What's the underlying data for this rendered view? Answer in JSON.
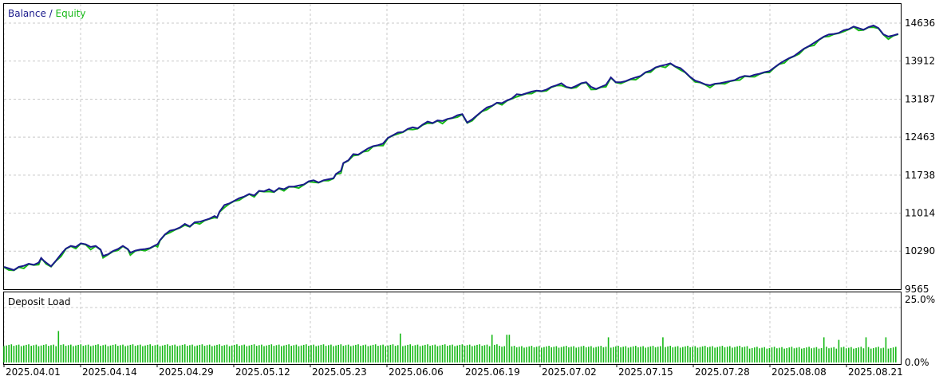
{
  "chart_data": [
    {
      "type": "line",
      "legend": {
        "placement": "top-left",
        "separator": " / "
      },
      "series": [
        {
          "name": "Balance",
          "color": "#1a1a8c"
        },
        {
          "name": "Equity",
          "color": "#17b917"
        }
      ],
      "x_ticks": [
        "2025.04.01",
        "2025.04.14",
        "2025.04.29",
        "2025.05.12",
        "2025.05.23",
        "2025.06.06",
        "2025.06.19",
        "2025.07.02",
        "2025.07.15",
        "2025.07.28",
        "2025.08.08",
        "2025.08.21"
      ],
      "y_ticks": [
        "14636",
        "13912",
        "13187",
        "12463",
        "11738",
        "11014",
        "10290",
        "9565"
      ],
      "ylim": [
        9565,
        14636
      ],
      "grid": true,
      "balance_points": [
        [
          0,
          9990
        ],
        [
          2,
          9960
        ],
        [
          4,
          9930
        ],
        [
          6,
          9990
        ],
        [
          8,
          10010
        ],
        [
          10,
          10050
        ],
        [
          12,
          10030
        ],
        [
          14,
          10070
        ],
        [
          15,
          10160
        ],
        [
          16,
          10110
        ],
        [
          17,
          10070
        ],
        [
          19,
          10000
        ],
        [
          21,
          10110
        ],
        [
          23,
          10230
        ],
        [
          25,
          10340
        ],
        [
          27,
          10390
        ],
        [
          29,
          10370
        ],
        [
          31,
          10440
        ],
        [
          33,
          10420
        ],
        [
          35,
          10370
        ],
        [
          37,
          10390
        ],
        [
          39,
          10320
        ],
        [
          40,
          10200
        ],
        [
          42,
          10230
        ],
        [
          44,
          10290
        ],
        [
          46,
          10330
        ],
        [
          48,
          10390
        ],
        [
          50,
          10330
        ],
        [
          51,
          10260
        ],
        [
          53,
          10300
        ],
        [
          55,
          10320
        ],
        [
          57,
          10330
        ],
        [
          59,
          10350
        ],
        [
          61,
          10400
        ],
        [
          62,
          10420
        ],
        [
          63,
          10500
        ],
        [
          65,
          10610
        ],
        [
          67,
          10680
        ],
        [
          69,
          10700
        ],
        [
          71,
          10740
        ],
        [
          73,
          10810
        ],
        [
          75,
          10760
        ],
        [
          77,
          10840
        ],
        [
          79,
          10850
        ],
        [
          81,
          10880
        ],
        [
          83,
          10910
        ],
        [
          85,
          10960
        ],
        [
          86,
          10930
        ],
        [
          87,
          11040
        ],
        [
          89,
          11170
        ],
        [
          91,
          11200
        ],
        [
          93,
          11250
        ],
        [
          95,
          11300
        ],
        [
          97,
          11330
        ],
        [
          99,
          11380
        ],
        [
          101,
          11350
        ],
        [
          103,
          11440
        ],
        [
          105,
          11430
        ],
        [
          107,
          11470
        ],
        [
          109,
          11420
        ],
        [
          111,
          11490
        ],
        [
          113,
          11470
        ],
        [
          115,
          11520
        ],
        [
          117,
          11520
        ],
        [
          119,
          11540
        ],
        [
          121,
          11560
        ],
        [
          123,
          11620
        ],
        [
          125,
          11640
        ],
        [
          127,
          11600
        ],
        [
          129,
          11640
        ],
        [
          131,
          11660
        ],
        [
          133,
          11680
        ],
        [
          134,
          11760
        ],
        [
          136,
          11820
        ],
        [
          137,
          11970
        ],
        [
          139,
          12020
        ],
        [
          141,
          12140
        ],
        [
          143,
          12130
        ],
        [
          145,
          12190
        ],
        [
          147,
          12250
        ],
        [
          149,
          12290
        ],
        [
          151,
          12310
        ],
        [
          153,
          12340
        ],
        [
          155,
          12450
        ],
        [
          157,
          12500
        ],
        [
          159,
          12550
        ],
        [
          161,
          12560
        ],
        [
          163,
          12620
        ],
        [
          165,
          12650
        ],
        [
          167,
          12630
        ],
        [
          169,
          12700
        ],
        [
          171,
          12760
        ],
        [
          173,
          12730
        ],
        [
          175,
          12780
        ],
        [
          177,
          12770
        ],
        [
          179,
          12810
        ],
        [
          181,
          12830
        ],
        [
          183,
          12880
        ],
        [
          185,
          12900
        ],
        [
          187,
          12740
        ],
        [
          189,
          12800
        ],
        [
          191,
          12880
        ],
        [
          193,
          12960
        ],
        [
          195,
          13030
        ],
        [
          197,
          13060
        ],
        [
          199,
          13120
        ],
        [
          201,
          13110
        ],
        [
          203,
          13160
        ],
        [
          205,
          13200
        ],
        [
          207,
          13280
        ],
        [
          209,
          13270
        ],
        [
          211,
          13300
        ],
        [
          213,
          13330
        ],
        [
          215,
          13350
        ],
        [
          217,
          13340
        ],
        [
          219,
          13370
        ],
        [
          221,
          13420
        ],
        [
          223,
          13450
        ],
        [
          225,
          13490
        ],
        [
          227,
          13420
        ],
        [
          229,
          13400
        ],
        [
          231,
          13440
        ],
        [
          233,
          13490
        ],
        [
          235,
          13510
        ],
        [
          237,
          13420
        ],
        [
          239,
          13380
        ],
        [
          241,
          13420
        ],
        [
          243,
          13460
        ],
        [
          245,
          13600
        ],
        [
          247,
          13510
        ],
        [
          249,
          13510
        ],
        [
          251,
          13530
        ],
        [
          253,
          13570
        ],
        [
          255,
          13600
        ],
        [
          257,
          13630
        ],
        [
          259,
          13700
        ],
        [
          261,
          13730
        ],
        [
          263,
          13790
        ],
        [
          265,
          13820
        ],
        [
          267,
          13840
        ],
        [
          269,
          13870
        ],
        [
          271,
          13810
        ],
        [
          273,
          13780
        ],
        [
          275,
          13700
        ],
        [
          277,
          13610
        ],
        [
          279,
          13540
        ],
        [
          281,
          13510
        ],
        [
          283,
          13470
        ],
        [
          285,
          13450
        ],
        [
          287,
          13480
        ],
        [
          289,
          13490
        ],
        [
          291,
          13510
        ],
        [
          293,
          13530
        ],
        [
          295,
          13550
        ],
        [
          297,
          13600
        ],
        [
          299,
          13630
        ],
        [
          301,
          13620
        ],
        [
          303,
          13650
        ],
        [
          305,
          13670
        ],
        [
          307,
          13700
        ],
        [
          309,
          13720
        ],
        [
          311,
          13790
        ],
        [
          313,
          13860
        ],
        [
          315,
          13920
        ],
        [
          317,
          13970
        ],
        [
          319,
          14010
        ],
        [
          321,
          14080
        ],
        [
          323,
          14150
        ],
        [
          325,
          14200
        ],
        [
          327,
          14260
        ],
        [
          329,
          14320
        ],
        [
          331,
          14380
        ],
        [
          333,
          14420
        ],
        [
          335,
          14430
        ],
        [
          337,
          14450
        ],
        [
          339,
          14500
        ],
        [
          341,
          14520
        ],
        [
          343,
          14570
        ],
        [
          345,
          14540
        ],
        [
          347,
          14510
        ],
        [
          349,
          14560
        ],
        [
          351,
          14590
        ],
        [
          353,
          14540
        ],
        [
          355,
          14420
        ],
        [
          357,
          14380
        ],
        [
          359,
          14400
        ],
        [
          361,
          14430
        ]
      ]
    },
    {
      "type": "bar",
      "title": "Deposit Load",
      "color": "#17b917",
      "y_ticks": [
        "25.0%",
        "0.0%"
      ],
      "ylim": [
        0,
        25
      ],
      "base_level": 6.5,
      "spikes": [
        [
          22,
          12.5
        ],
        [
          160,
          11.5
        ],
        [
          197,
          11
        ],
        [
          203,
          11
        ],
        [
          204,
          11
        ],
        [
          244,
          10
        ],
        [
          266,
          10
        ],
        [
          331,
          10
        ],
        [
          337,
          9
        ],
        [
          348,
          10
        ],
        [
          356,
          10
        ]
      ]
    }
  ]
}
